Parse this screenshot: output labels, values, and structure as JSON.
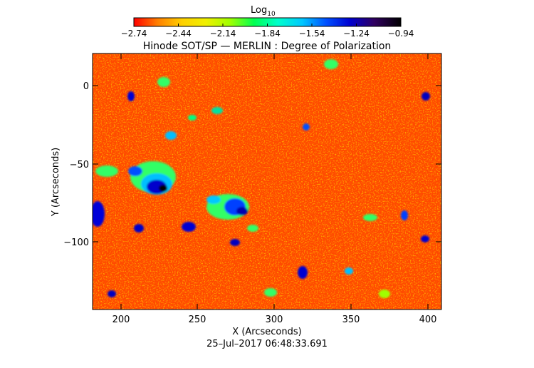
{
  "colorbar": {
    "label": "Log",
    "label_sub": "10",
    "ticks": [
      "−2.74",
      "−2.44",
      "−2.14",
      "−1.84",
      "−1.54",
      "−1.24",
      "−0.94"
    ],
    "colors": [
      "#ff0000",
      "#ff8000",
      "#ffd000",
      "#f0f000",
      "#a0ff00",
      "#00ff50",
      "#00ffcc",
      "#00c8ff",
      "#0050ff",
      "#0000d0",
      "#300060",
      "#000000"
    ]
  },
  "plot": {
    "title": "Hinode SOT/SP — MERLIN : Degree of Polarization",
    "xlabel": "X (Arcseconds)",
    "ylabel": "Y (Arcseconds)",
    "xticks": [
      "200",
      "250",
      "300",
      "350",
      "400"
    ],
    "yticks": [
      "0",
      "−50",
      "−100"
    ],
    "xlim": [
      182,
      405
    ],
    "ylim": [
      -143,
      20
    ],
    "timestamp": "25–Jul–2017 06:48:33.691"
  }
}
